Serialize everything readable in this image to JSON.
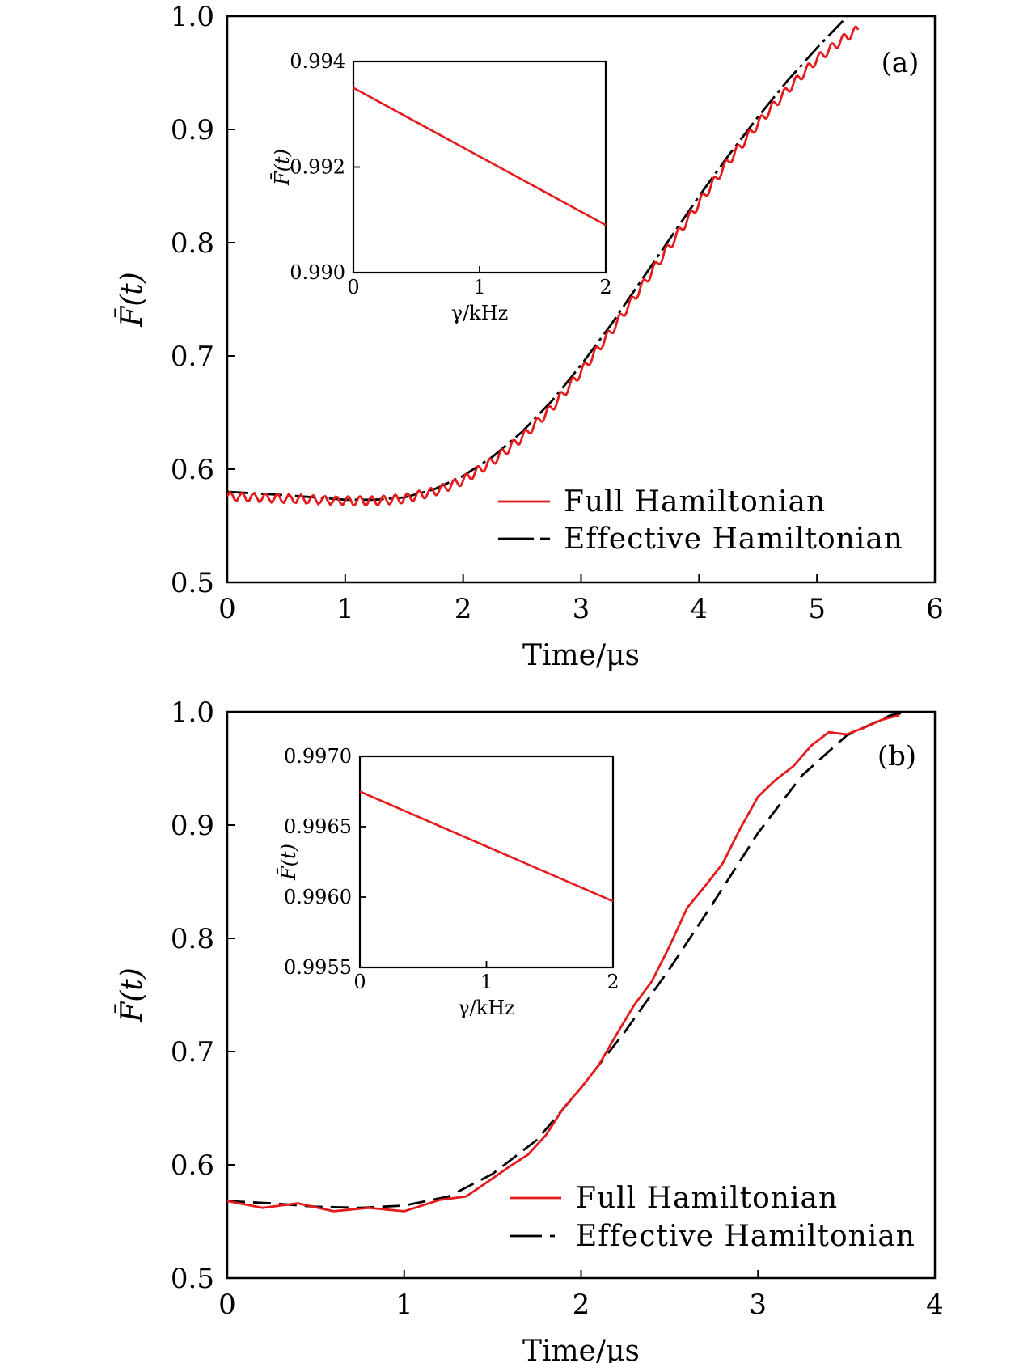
{
  "chart_data": [
    {
      "type": "line",
      "panel_label": "(a)",
      "xlabel": "Time/μs",
      "ylabel": "F̄(t)",
      "xlim": [
        0,
        6
      ],
      "ylim": [
        0.5,
        1.0
      ],
      "xticks": [
        "0",
        "1",
        "2",
        "3",
        "4",
        "5",
        "6"
      ],
      "yticks": [
        "0.5",
        "0.6",
        "0.7",
        "0.8",
        "0.9",
        "1.0"
      ],
      "legend_position": "bottom-right",
      "series": [
        {
          "name": "Full Hamiltonian",
          "color": "#e41a1c",
          "style": "solid",
          "ripple": 0.004,
          "x": [
            0,
            0.5,
            1.0,
            1.25,
            1.5,
            1.75,
            2.0,
            2.25,
            2.5,
            2.75,
            3.0,
            3.25,
            3.5,
            3.75,
            4.0,
            4.25,
            4.5,
            4.75,
            5.0,
            5.25,
            5.35
          ],
          "y": [
            0.576,
            0.574,
            0.572,
            0.572,
            0.574,
            0.58,
            0.59,
            0.607,
            0.628,
            0.654,
            0.686,
            0.721,
            0.759,
            0.797,
            0.835,
            0.872,
            0.905,
            0.935,
            0.962,
            0.982,
            0.988
          ]
        },
        {
          "name": "Effective Hamiltonian",
          "color": "#000000",
          "style": "dash-dot",
          "ripple": 0,
          "x": [
            0,
            0.5,
            1.0,
            1.25,
            1.5,
            1.75,
            2.0,
            2.25,
            2.5,
            2.75,
            3.0,
            3.25,
            3.5,
            3.75,
            4.0,
            4.25,
            4.5,
            4.75,
            5.0,
            5.25
          ],
          "y": [
            0.58,
            0.577,
            0.573,
            0.573,
            0.575,
            0.582,
            0.594,
            0.611,
            0.633,
            0.66,
            0.692,
            0.727,
            0.765,
            0.803,
            0.841,
            0.877,
            0.911,
            0.943,
            0.972,
            0.999
          ]
        }
      ],
      "inset": {
        "xlabel": "γ/kHz",
        "ylabel": "F̄(t)",
        "xlim": [
          0,
          2
        ],
        "ylim": [
          0.99,
          0.994
        ],
        "xticks": [
          "0",
          "1",
          "2"
        ],
        "yticks": [
          "0.990",
          "0.992",
          "0.994"
        ],
        "series": [
          {
            "color": "#e41a1c",
            "x": [
              0,
              2
            ],
            "y": [
              0.9935,
              0.9909
            ]
          }
        ]
      }
    },
    {
      "type": "line",
      "panel_label": "(b)",
      "xlabel": "Time/μs",
      "ylabel": "F̄(t)",
      "xlim": [
        0,
        4
      ],
      "ylim": [
        0.5,
        1.0
      ],
      "xticks": [
        "0",
        "1",
        "2",
        "3",
        "4"
      ],
      "yticks": [
        "0.5",
        "0.6",
        "0.7",
        "0.8",
        "0.9",
        "1.0"
      ],
      "legend_position": "bottom-right",
      "series": [
        {
          "name": "Full Hamiltonian",
          "color": "#e41a1c",
          "style": "solid",
          "ripple": 0,
          "x": [
            0,
            0.2,
            0.4,
            0.6,
            0.8,
            1.0,
            1.2,
            1.35,
            1.5,
            1.6,
            1.7,
            1.8,
            1.9,
            2.0,
            2.1,
            2.2,
            2.3,
            2.4,
            2.5,
            2.6,
            2.7,
            2.8,
            2.9,
            3.0,
            3.1,
            3.2,
            3.3,
            3.4,
            3.5,
            3.6,
            3.7,
            3.8
          ],
          "y": [
            0.568,
            0.562,
            0.566,
            0.559,
            0.562,
            0.559,
            0.569,
            0.572,
            0.588,
            0.599,
            0.609,
            0.626,
            0.65,
            0.668,
            0.688,
            0.715,
            0.741,
            0.762,
            0.793,
            0.827,
            0.846,
            0.866,
            0.897,
            0.925,
            0.94,
            0.952,
            0.97,
            0.982,
            0.98,
            0.986,
            0.993,
            0.997
          ]
        },
        {
          "name": "Effective Hamiltonian",
          "color": "#000000",
          "style": "dashed",
          "ripple": 0,
          "x": [
            0,
            0.25,
            0.5,
            0.75,
            1.0,
            1.25,
            1.5,
            1.75,
            2.0,
            2.25,
            2.5,
            2.75,
            3.0,
            3.25,
            3.5,
            3.75,
            3.85
          ],
          "y": [
            0.568,
            0.566,
            0.563,
            0.562,
            0.564,
            0.572,
            0.592,
            0.622,
            0.668,
            0.718,
            0.773,
            0.832,
            0.893,
            0.944,
            0.979,
            0.997,
            1.0
          ]
        }
      ],
      "inset": {
        "xlabel": "γ/kHz",
        "ylabel": "F̄(t)",
        "xlim": [
          0,
          2
        ],
        "ylim": [
          0.9955,
          0.997
        ],
        "xticks": [
          "0",
          "1",
          "2"
        ],
        "yticks": [
          "0.9955",
          "0.9960",
          "0.9965",
          "0.9970"
        ],
        "series": [
          {
            "color": "#e41a1c",
            "x": [
              0,
              2
            ],
            "y": [
              0.99675,
              0.99597
            ]
          }
        ]
      }
    }
  ]
}
